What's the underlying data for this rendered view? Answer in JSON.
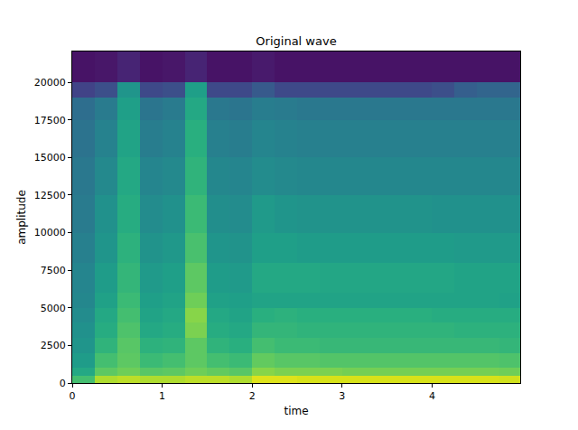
{
  "chart_data": {
    "type": "heatmap",
    "title": "Original wave",
    "x_label": "time",
    "y_label": "amplitude",
    "color": "Viridis",
    "x": [
      0,
      0.25,
      0.5,
      0.75,
      1.0,
      1.25,
      1.5,
      1.75,
      2.0,
      2.25,
      2.5,
      2.75,
      3.0,
      3.25,
      3.5,
      3.75,
      4.0,
      4.25,
      4.5,
      4.75,
      4.98
    ],
    "y": [
      0,
      500,
      1000,
      2000,
      3000,
      4000,
      5000,
      6000,
      8000,
      10000,
      12500,
      15000,
      17500,
      19000,
      20000,
      22050
    ],
    "cells": [
      [
        -50,
        -32,
        -30,
        -32,
        -32,
        -30,
        -30,
        -32,
        -25,
        -25,
        -26,
        -26,
        -26,
        -26,
        -26,
        -26,
        -26,
        -26,
        -26,
        -27
      ],
      [
        -60,
        -45,
        -42,
        -46,
        -45,
        -42,
        -44,
        -46,
        -38,
        -40,
        -40,
        -40,
        -41,
        -41,
        -41,
        -41,
        -41,
        -41,
        -41,
        -42
      ],
      [
        -65,
        -50,
        -45,
        -52,
        -50,
        -45,
        -50,
        -52,
        -44,
        -46,
        -46,
        -47,
        -47,
        -47,
        -47,
        -47,
        -47,
        -47,
        -47,
        -48
      ],
      [
        -68,
        -55,
        -46,
        -56,
        -55,
        -45,
        -55,
        -57,
        -50,
        -52,
        -52,
        -53,
        -53,
        -53,
        -53,
        -53,
        -53,
        -53,
        -53,
        -54
      ],
      [
        -70,
        -58,
        -48,
        -60,
        -58,
        -40,
        -58,
        -60,
        -54,
        -54,
        -55,
        -55,
        -55,
        -55,
        -55,
        -55,
        -55,
        -56,
        -56,
        -56
      ],
      [
        -72,
        -60,
        -50,
        -62,
        -60,
        -38,
        -60,
        -62,
        -57,
        -56,
        -57,
        -57,
        -57,
        -57,
        -57,
        -57,
        -58,
        -58,
        -58,
        -58
      ],
      [
        -74,
        -63,
        -52,
        -64,
        -62,
        -42,
        -63,
        -64,
        -62,
        -62,
        -62,
        -62,
        -62,
        -62,
        -62,
        -62,
        -62,
        -62,
        -62,
        -63
      ],
      [
        -75,
        -65,
        -54,
        -66,
        -64,
        -45,
        -65,
        -66,
        -60,
        -60,
        -60,
        -61,
        -61,
        -61,
        -61,
        -61,
        -61,
        -62,
        -62,
        -62
      ],
      [
        -77,
        -68,
        -56,
        -69,
        -67,
        -49,
        -68,
        -69,
        -64,
        -64,
        -65,
        -65,
        -65,
        -65,
        -65,
        -65,
        -65,
        -66,
        -66,
        -66
      ],
      [
        -79,
        -70,
        -58,
        -72,
        -70,
        -52,
        -71,
        -72,
        -66,
        -68,
        -69,
        -69,
        -69,
        -69,
        -69,
        -69,
        -70,
        -70,
        -70,
        -70
      ],
      [
        -80,
        -73,
        -60,
        -75,
        -73,
        -55,
        -74,
        -75,
        -72,
        -73,
        -74,
        -74,
        -74,
        -74,
        -74,
        -74,
        -74,
        -74,
        -74,
        -74
      ],
      [
        -82,
        -76,
        -62,
        -78,
        -76,
        -57,
        -77,
        -78,
        -75,
        -76,
        -77,
        -77,
        -77,
        -77,
        -77,
        -77,
        -77,
        -77,
        -77,
        -77
      ],
      [
        -84,
        -79,
        -64,
        -81,
        -79,
        -60,
        -80,
        -81,
        -78,
        -79,
        -80,
        -80,
        -80,
        -80,
        -80,
        -80,
        -80,
        -80,
        -80,
        -80
      ],
      [
        -100,
        -96,
        -68,
        -98,
        -96,
        -64,
        -98,
        -98,
        -92,
        -98,
        -98,
        -98,
        -98,
        -98,
        -98,
        -98,
        -96,
        -90,
        -88,
        -88
      ],
      [
        -115,
        -114,
        -110,
        -115,
        -114,
        -110,
        -115,
        -115,
        -113,
        -115,
        -115,
        -115,
        -115,
        -115,
        -115,
        -115,
        -115,
        -115,
        -115,
        -115
      ]
    ],
    "zlim": [
      -120,
      -20
    ],
    "xlim": [
      0,
      4.98
    ],
    "ylim": [
      0,
      22050
    ],
    "xticks": [
      0,
      1,
      2,
      3,
      4
    ],
    "yticks": [
      0,
      2500,
      5000,
      7500,
      10000,
      12500,
      15000,
      17500,
      20000
    ]
  }
}
